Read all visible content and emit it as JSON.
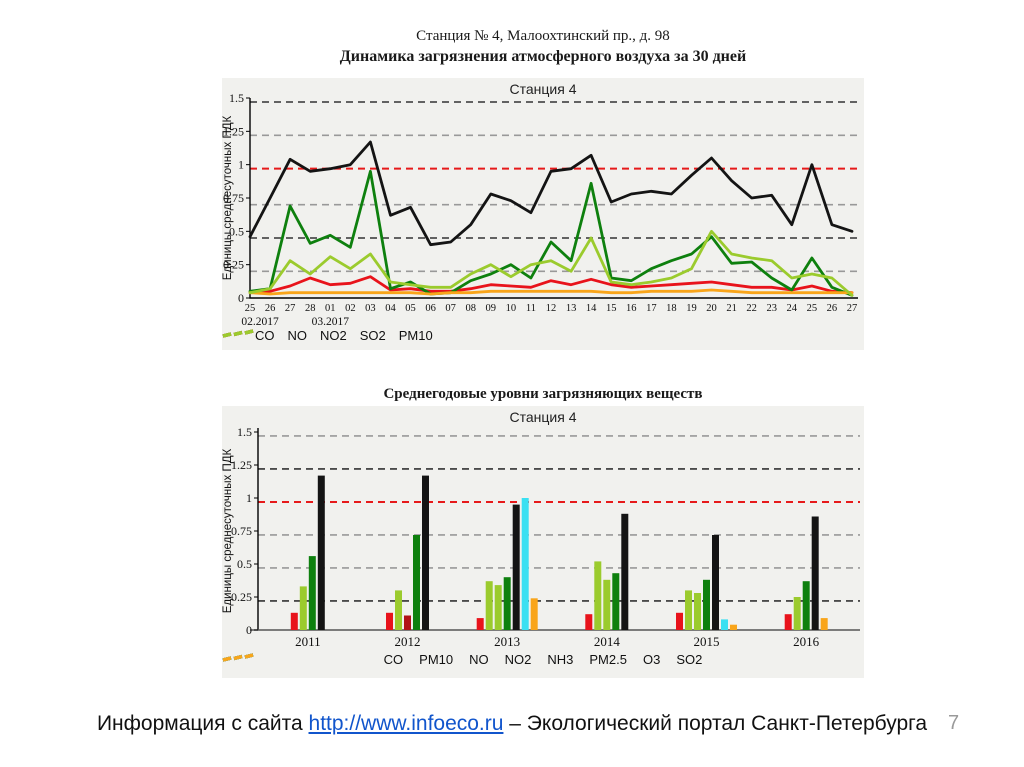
{
  "slide": {
    "title_line1": "Станция № 4, Малоохтинский пр., д. 98",
    "title_line2": "Динамика загрязнения атмосферного воздуха за 30 дней",
    "page_number": "7",
    "footer": {
      "prefix": "Информация с сайта ",
      "link": "http://www.infoeco.ru",
      "suffix": " – Экологический портал Санкт-Петербурга"
    }
  },
  "colors": {
    "panel_bg": "#f1f1ee",
    "threshold_red": "#e61a1a",
    "link_blue": "#1155cc",
    "grid_dark": "#333333",
    "grid_light": "#999999"
  },
  "chart_data": [
    {
      "type": "line",
      "title": "Станция 4",
      "ylabel": "Единицы среднесуточных ПДК",
      "ylim": [
        0,
        1.5
      ],
      "yticks": [
        "1.5",
        "1.25",
        "1",
        "0.75",
        "0.5",
        "0.25",
        "0"
      ],
      "ytick_values": [
        1.5,
        1.25,
        1,
        0.75,
        0.5,
        0.25,
        0
      ],
      "threshold_line": 0.97,
      "grid": true,
      "gridlines": [
        {
          "v": 1.47,
          "color": "#333333"
        },
        {
          "v": 1.22,
          "color": "#999999"
        },
        {
          "v": 0.97,
          "color": "#e61a1a"
        },
        {
          "v": 0.7,
          "color": "#999999"
        },
        {
          "v": 0.45,
          "color": "#333333"
        },
        {
          "v": 0.2,
          "color": "#999999"
        }
      ],
      "x": [
        "25",
        "26",
        "27",
        "28",
        "01",
        "02",
        "03",
        "04",
        "05",
        "06",
        "07",
        "08",
        "09",
        "10",
        "11",
        "12",
        "13",
        "14",
        "15",
        "16",
        "17",
        "18",
        "19",
        "20",
        "21",
        "22",
        "23",
        "24",
        "25",
        "26",
        "27"
      ],
      "month_labels": [
        {
          "label": "02.2017",
          "x_index": 0.5
        },
        {
          "label": "03.2017",
          "x_index": 4
        }
      ],
      "legend_position": "bottom",
      "series": [
        {
          "name": "CO",
          "color": "#e8131b",
          "values": [
            0.04,
            0.05,
            0.09,
            0.15,
            0.1,
            0.11,
            0.16,
            0.06,
            0.07,
            0.05,
            0.05,
            0.07,
            0.1,
            0.09,
            0.08,
            0.13,
            0.1,
            0.14,
            0.1,
            0.08,
            0.09,
            0.1,
            0.11,
            0.12,
            0.1,
            0.08,
            0.08,
            0.06,
            0.09,
            0.05,
            0.04
          ]
        },
        {
          "name": "NO",
          "color": "#0e800e",
          "values": [
            0.05,
            0.07,
            0.69,
            0.41,
            0.47,
            0.38,
            0.95,
            0.07,
            0.12,
            0.03,
            0.04,
            0.13,
            0.18,
            0.25,
            0.15,
            0.42,
            0.28,
            0.86,
            0.15,
            0.13,
            0.22,
            0.28,
            0.33,
            0.46,
            0.26,
            0.27,
            0.15,
            0.06,
            0.3,
            0.08,
            0.02
          ]
        },
        {
          "name": "NO2",
          "color": "#141414",
          "values": [
            0.46,
            0.75,
            1.04,
            0.95,
            0.97,
            1.0,
            1.17,
            0.62,
            0.68,
            0.4,
            0.42,
            0.55,
            0.78,
            0.73,
            0.64,
            0.95,
            0.97,
            1.07,
            0.72,
            0.78,
            0.8,
            0.78,
            0.92,
            1.05,
            0.88,
            0.75,
            0.77,
            0.55,
            1.0,
            0.55,
            0.5
          ]
        },
        {
          "name": "SO2",
          "color": "#f9a51a",
          "values": [
            0.04,
            0.03,
            0.04,
            0.04,
            0.04,
            0.04,
            0.04,
            0.04,
            0.04,
            0.03,
            0.04,
            0.04,
            0.05,
            0.05,
            0.05,
            0.05,
            0.05,
            0.05,
            0.04,
            0.04,
            0.05,
            0.05,
            0.05,
            0.06,
            0.05,
            0.04,
            0.04,
            0.04,
            0.04,
            0.04,
            0.04
          ]
        },
        {
          "name": "PM10",
          "color": "#9bcb2d",
          "values": [
            0.04,
            0.07,
            0.28,
            0.18,
            0.31,
            0.22,
            0.33,
            0.12,
            0.1,
            0.08,
            0.08,
            0.18,
            0.25,
            0.16,
            0.25,
            0.28,
            0.2,
            0.45,
            0.12,
            0.1,
            0.12,
            0.15,
            0.22,
            0.5,
            0.33,
            0.3,
            0.28,
            0.15,
            0.18,
            0.15,
            0.02
          ]
        }
      ]
    },
    {
      "type": "bar",
      "header": "Среднегодовые уровни загрязняющих веществ",
      "title": "Станция 4",
      "ylabel": "Единицы среднесуточных ПДК",
      "ylim": [
        0,
        1.5
      ],
      "yticks": [
        "1.5",
        "1.25",
        "1",
        "0.75",
        "0.5",
        "0.25",
        "0"
      ],
      "ytick_values": [
        1.5,
        1.25,
        1,
        0.75,
        0.5,
        0.25,
        0
      ],
      "threshold_line": 0.97,
      "grid": true,
      "gridlines": [
        {
          "v": 1.47,
          "color": "#999999"
        },
        {
          "v": 1.22,
          "color": "#333333"
        },
        {
          "v": 0.97,
          "color": "#e61a1a"
        },
        {
          "v": 0.72,
          "color": "#999999"
        },
        {
          "v": 0.47,
          "color": "#999999"
        },
        {
          "v": 0.22,
          "color": "#333333"
        }
      ],
      "categories": [
        "2011",
        "2012",
        "2013",
        "2014",
        "2015",
        "2016"
      ],
      "bar_order": [
        "CO",
        "PM10",
        "NH3",
        "PM2.5",
        "NO",
        "NO2",
        "O3",
        "SO2"
      ],
      "legend_order": [
        "CO",
        "PM10",
        "NO",
        "NO2",
        "NH3",
        "PM2.5",
        "O3",
        "SO2"
      ],
      "series_colors": {
        "CO": "#e8131b",
        "PM10": "#9bcb2d",
        "NO": "#0e800e",
        "NO2": "#141414",
        "NH3": "#b11117",
        "PM2.5": "#9bcb2d",
        "O3": "#3ae0f2",
        "SO2": "#f9a51a"
      },
      "values": {
        "2011": {
          "CO": 0.13,
          "PM10": 0.33,
          "NO": 0.56,
          "NO2": 1.17
        },
        "2012": {
          "CO": 0.13,
          "PM10": 0.3,
          "NH3": 0.11,
          "NO": 0.72,
          "NO2": 1.17
        },
        "2013": {
          "CO": 0.09,
          "PM10": 0.37,
          "PM2.5": 0.34,
          "NO": 0.4,
          "NO2": 0.95,
          "O3": 1.0,
          "SO2": 0.24
        },
        "2014": {
          "CO": 0.12,
          "PM10": 0.52,
          "PM2.5": 0.38,
          "NO": 0.43,
          "NO2": 0.88
        },
        "2015": {
          "CO": 0.13,
          "PM10": 0.3,
          "PM2.5": 0.28,
          "NO": 0.38,
          "NO2": 0.72,
          "O3": 0.08,
          "SO2": 0.04
        },
        "2016": {
          "CO": 0.12,
          "PM10": 0.25,
          "NO": 0.37,
          "NO2": 0.86,
          "SO2": 0.09
        }
      }
    }
  ]
}
